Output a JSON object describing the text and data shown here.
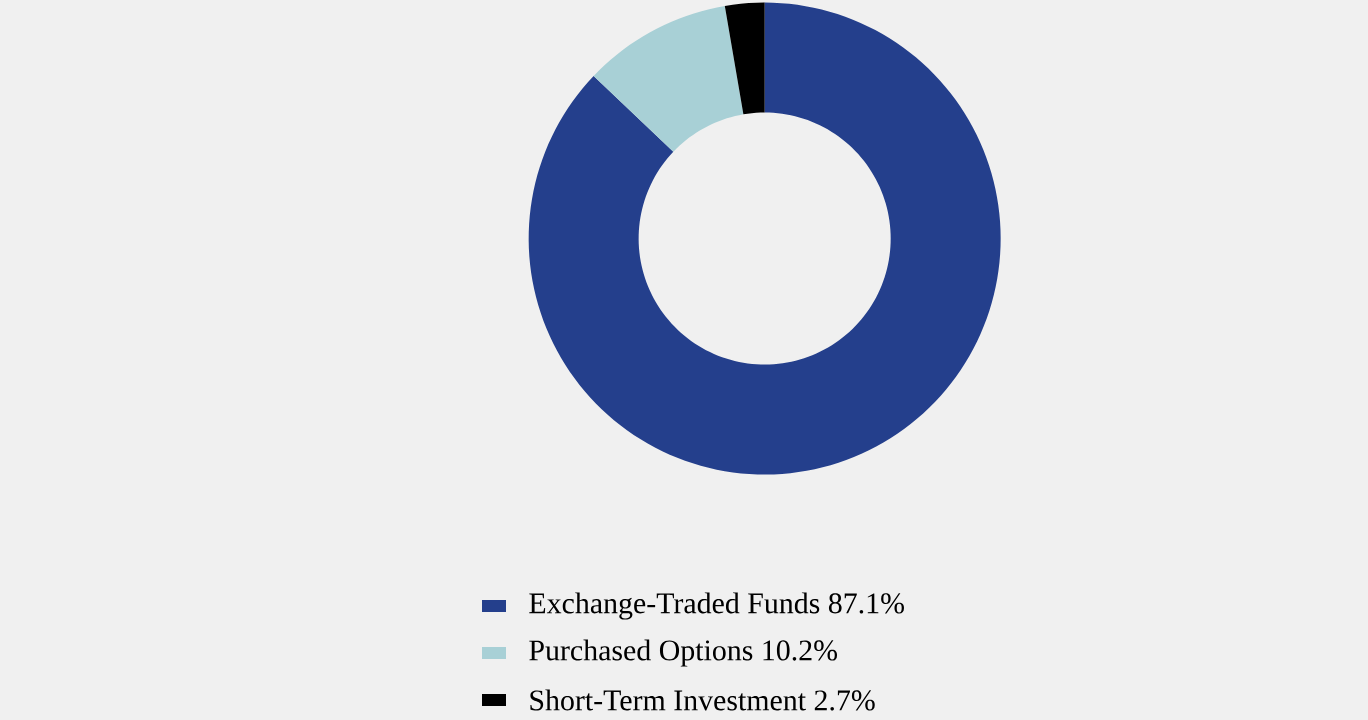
{
  "chart_data": {
    "type": "donut",
    "categories": [
      "Exchange-Traded Funds",
      "Purchased Options",
      "Short-Term Investment"
    ],
    "values": [
      87.1,
      10.2,
      2.7
    ],
    "value_labels": [
      "87.1%",
      "10.2%",
      "2.7%"
    ],
    "colors": [
      "#243f8c",
      "#a8d0d6",
      "#000000"
    ],
    "legend": "bottom"
  }
}
